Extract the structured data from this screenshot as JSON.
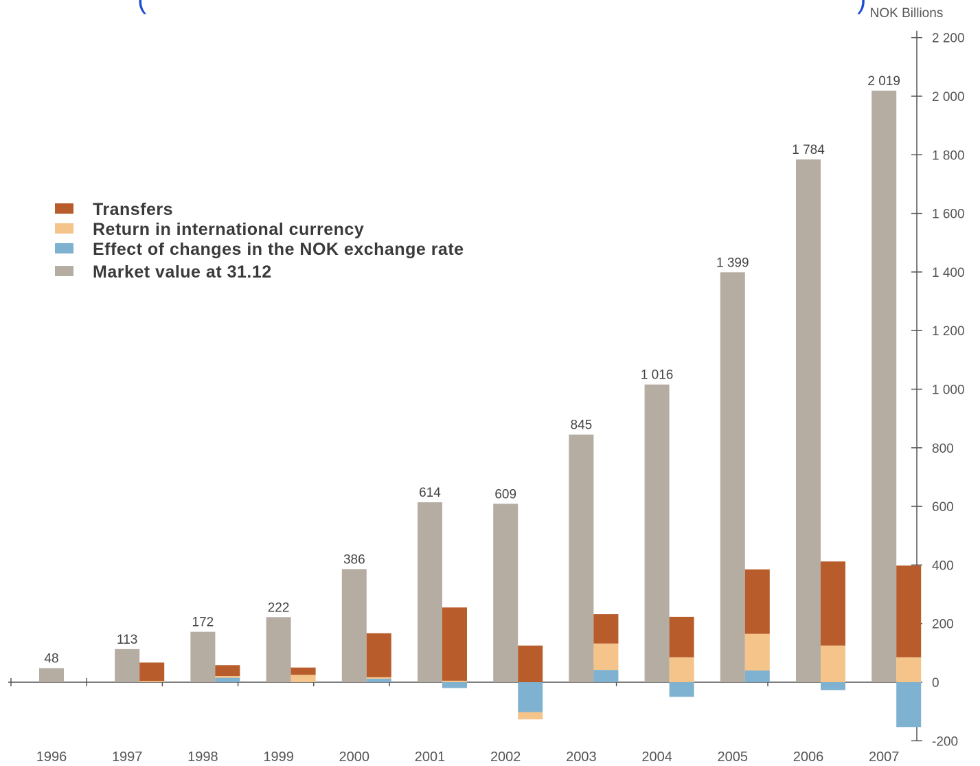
{
  "chart_data": {
    "type": "bar",
    "unit_label": "NOK Billions",
    "categories": [
      "1996",
      "1997",
      "1998",
      "1999",
      "2000",
      "2001",
      "2002",
      "2003",
      "2004",
      "2005",
      "2006",
      "2007"
    ],
    "series": [
      {
        "name": "Market value at 31.12",
        "color": "#b5ada2",
        "values": [
          48,
          113,
          172,
          222,
          386,
          614,
          609,
          845,
          1016,
          1399,
          1784,
          2019
        ],
        "labels": [
          "48",
          "113",
          "172",
          "222",
          "386",
          "614",
          "609",
          "845",
          "1 016",
          "1 399",
          "1 784",
          "2 019"
        ]
      },
      {
        "name": "Transfers",
        "color": "#b85c2c",
        "values": [
          0,
          63,
          37,
          25,
          150,
          250,
          125,
          100,
          138,
          220,
          287,
          313
        ]
      },
      {
        "name": "Return in international currency",
        "color": "#f4c48a",
        "values": [
          0,
          4,
          6,
          25,
          5,
          5,
          -25,
          90,
          85,
          125,
          125,
          85
        ]
      },
      {
        "name": "Effect of changes in the NOK exchange rate",
        "color": "#7fb1d0",
        "values": [
          0,
          0,
          15,
          0,
          12,
          -20,
          -102,
          42,
          -50,
          40,
          -27,
          -153
        ]
      }
    ],
    "stack_order": [
      "Effect of changes in the NOK exchange rate",
      "Return in international currency",
      "Transfers"
    ],
    "legend_order": [
      "Transfers",
      "Return in international currency",
      "Effect of changes in the NOK exchange rate",
      "Market value at 31.12"
    ],
    "legend_labels": [
      "Transfers",
      "Return in international currency",
      "Effect of changes in the NOK exchange rate",
      "Market value at 31.12"
    ],
    "legend_position": "left",
    "y_axis_position": "right",
    "ylim": [
      -200,
      2200
    ],
    "yticks": [
      -200,
      0,
      200,
      400,
      600,
      800,
      1000,
      1200,
      1400,
      1600,
      1800,
      2000,
      2200
    ],
    "ytick_labels": [
      "-200",
      "0",
      "200",
      "400",
      "600",
      "800",
      "1 000",
      "1 200",
      "1 400",
      "1 600",
      "1 800",
      "2 000",
      "2 200"
    ],
    "grid": false
  }
}
